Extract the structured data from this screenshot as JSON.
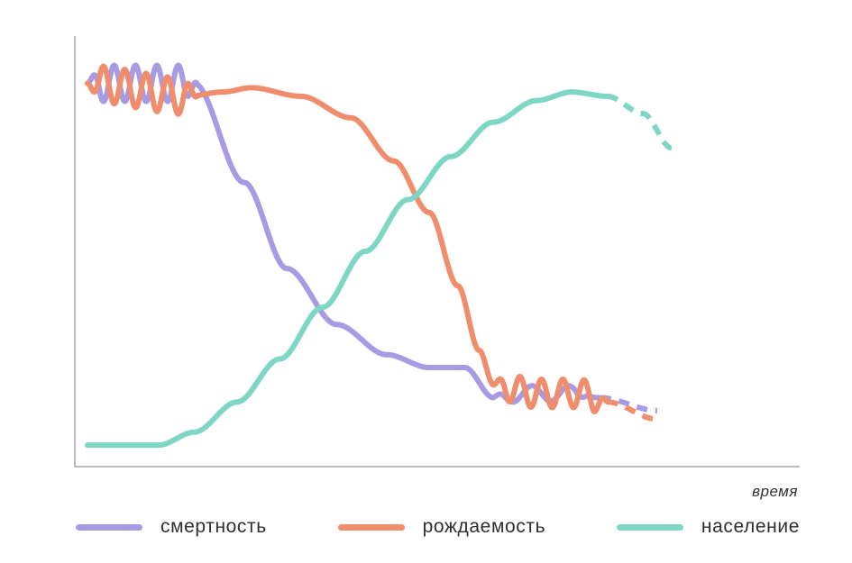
{
  "chart_data": {
    "type": "line",
    "title": "",
    "xlabel": "время",
    "ylabel": "",
    "grid": false,
    "legend_position": "bottom",
    "x_range": [
      0,
      100
    ],
    "y_range": [
      0,
      100
    ],
    "series": [
      {
        "key": "mortality",
        "name": "смертность",
        "color": "#a79be3",
        "solid": [
          [
            0,
            89
          ],
          [
            15,
            89
          ],
          [
            22,
            66
          ],
          [
            28,
            46
          ],
          [
            35,
            33
          ],
          [
            42,
            26
          ],
          [
            48,
            23
          ],
          [
            53,
            23
          ],
          [
            57,
            16
          ],
          [
            61,
            17
          ],
          [
            67,
            17
          ],
          [
            72,
            16
          ]
        ],
        "dashed": [
          [
            72,
            16
          ],
          [
            80,
            13
          ]
        ],
        "oscillations": [
          {
            "from": 0,
            "to": 15.5,
            "amplitude": 4.2,
            "period": 3.0,
            "phase": 0
          },
          {
            "from": 57,
            "to": 70,
            "amplitude": 1.8,
            "period": 5.2,
            "phase": 1.3
          }
        ]
      },
      {
        "key": "birth_rate",
        "name": "рождаемость",
        "color": "#ef8d6d",
        "solid": [
          [
            0,
            89
          ],
          [
            14,
            86
          ],
          [
            19,
            87
          ],
          [
            23,
            88
          ],
          [
            30,
            86
          ],
          [
            37,
            81
          ],
          [
            43,
            71
          ],
          [
            48,
            59
          ],
          [
            52,
            42
          ],
          [
            55,
            27
          ],
          [
            57,
            19
          ],
          [
            63,
            17
          ],
          [
            69,
            17
          ],
          [
            73,
            15
          ]
        ],
        "dashed": [
          [
            73,
            15
          ],
          [
            80,
            11
          ]
        ],
        "oscillations": [
          {
            "from": 0,
            "to": 15.5,
            "amplitude": 4.2,
            "period": 3.0,
            "phase": 3.14159
          },
          {
            "from": 57,
            "to": 73,
            "amplitude": 3.3,
            "period": 3.0,
            "phase": 0
          }
        ]
      },
      {
        "key": "population",
        "name": "население",
        "color": "#7ed6c5",
        "solid": [
          [
            0,
            5
          ],
          [
            10,
            5
          ],
          [
            15,
            8
          ],
          [
            21,
            15
          ],
          [
            27,
            25
          ],
          [
            33,
            37
          ],
          [
            39,
            50
          ],
          [
            45,
            62
          ],
          [
            51,
            72
          ],
          [
            57,
            80
          ],
          [
            63,
            85
          ],
          [
            68,
            87
          ],
          [
            73,
            86
          ]
        ],
        "dashed": [
          [
            73,
            86
          ],
          [
            78,
            82
          ],
          [
            82,
            74
          ]
        ],
        "oscillations": []
      }
    ]
  }
}
